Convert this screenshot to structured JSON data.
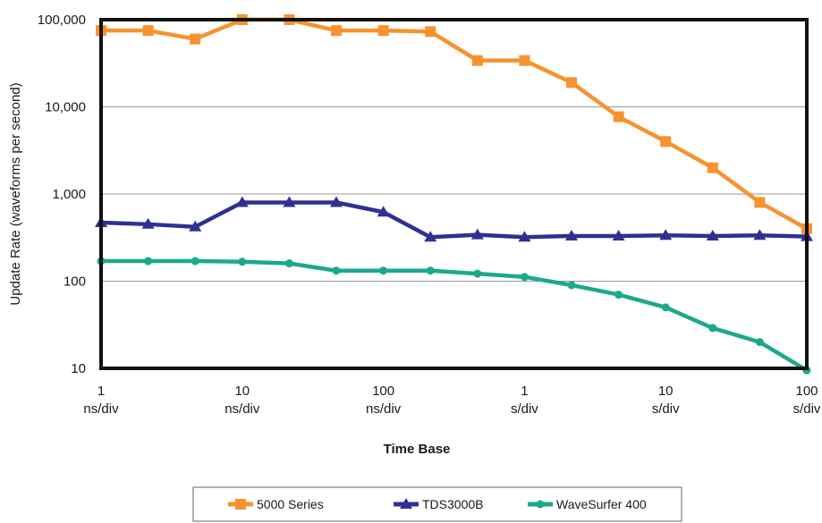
{
  "chart_data": {
    "type": "line",
    "xlabel": "Time Base",
    "ylabel": "Update Rate (waveforms per second)",
    "y_scale": "log",
    "ylim": [
      10,
      100000
    ],
    "y_ticks": [
      "10",
      "100",
      "1,000",
      "10,000",
      "100,000"
    ],
    "x_ticks": [
      {
        "value": "1",
        "unit": "ns/div"
      },
      {
        "value": "10",
        "unit": "ns/div"
      },
      {
        "value": "100",
        "unit": "ns/div"
      },
      {
        "value": "1",
        "unit": "s/div"
      },
      {
        "value": "10",
        "unit": "s/div"
      },
      {
        "value": "100",
        "unit": "s/div"
      }
    ],
    "x_points_per_decade": 3,
    "grid": "horizontal",
    "legend_position": "bottom",
    "series": [
      {
        "name": "5000 Series",
        "color": "#F7922F",
        "marker": "square",
        "values": [
          75000,
          75000,
          60000,
          100000,
          100000,
          75000,
          75000,
          73000,
          34000,
          34000,
          19000,
          7700,
          4000,
          2000,
          800,
          400
        ]
      },
      {
        "name": "TDS3000B",
        "color": "#2E3192",
        "marker": "triangle",
        "values": [
          470,
          450,
          420,
          800,
          800,
          800,
          620,
          320,
          340,
          320,
          330,
          330,
          335,
          330,
          335,
          325
        ]
      },
      {
        "name": "WaveSurfer 400",
        "color": "#1BA98B",
        "marker": "circle",
        "values": [
          170,
          170,
          170,
          167,
          160,
          132,
          132,
          132,
          122,
          112,
          90,
          70,
          50,
          29,
          20,
          9.5
        ]
      }
    ]
  }
}
